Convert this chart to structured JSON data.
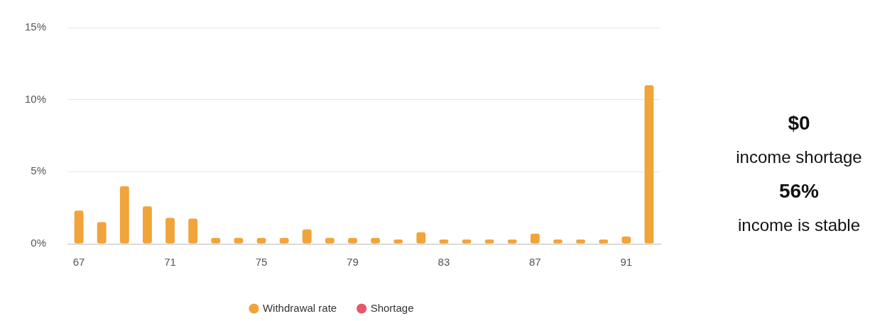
{
  "chart_data": {
    "type": "bar",
    "categories": [
      "67",
      null,
      null,
      null,
      "71",
      null,
      null,
      null,
      "75",
      null,
      null,
      null,
      "79",
      null,
      null,
      null,
      "83",
      null,
      null,
      null,
      "87",
      null,
      null,
      null,
      "91",
      null
    ],
    "series": [
      {
        "name": "Withdrawal rate",
        "color": "#f0a43a",
        "values": [
          2.3,
          1.5,
          4.0,
          2.6,
          1.8,
          1.75,
          0.4,
          0.4,
          0.4,
          0.4,
          1.0,
          0.4,
          0.4,
          0.4,
          0.3,
          0.8,
          0.3,
          0.3,
          0.3,
          0.3,
          0.7,
          0.3,
          0.3,
          0.3,
          0.5,
          11.0
        ]
      },
      {
        "name": "Shortage",
        "color": "#e8566a",
        "values": [
          null,
          null,
          null,
          null,
          null,
          null,
          null,
          null,
          null,
          null,
          null,
          null,
          null,
          null,
          null,
          null,
          null,
          null,
          null,
          null,
          null,
          null,
          null,
          null,
          null,
          null
        ]
      }
    ],
    "stacked": true,
    "ylim": [
      0,
      15
    ],
    "yticks": [
      {
        "value": 0,
        "label": "0%"
      },
      {
        "value": 5,
        "label": "5%"
      },
      {
        "value": 10,
        "label": "10%"
      },
      {
        "value": 15,
        "label": "15%"
      }
    ],
    "grid": "y",
    "legend": "bottom",
    "annotations": [
      "$0",
      "income shortage",
      "56%",
      "income is stable"
    ]
  }
}
